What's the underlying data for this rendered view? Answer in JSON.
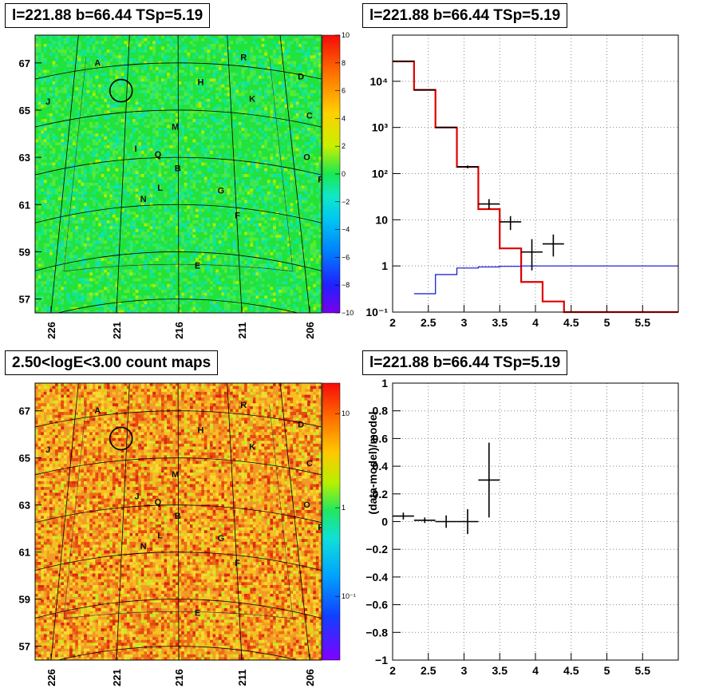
{
  "panels": {
    "top_left_title": "l=221.88 b=66.44 TSp=5.19",
    "top_right_title": "l=221.88 b=66.44 TSp=5.19",
    "bottom_left_title": "2.50<logE<3.00 count maps",
    "bottom_right_title": "l=221.88 b=66.44 TSp=5.19"
  },
  "colors": {
    "model_red": "#e00000",
    "component_blue": "#1010d0",
    "data_black": "#000000",
    "grid_gray": "#888888"
  },
  "chart_data": [
    {
      "type": "heatmap",
      "title": "l=221.88 b=66.44 TSp=5.19",
      "xticks": [
        "226",
        "221",
        "216",
        "211",
        "206"
      ],
      "yticks": [
        "57",
        "59",
        "61",
        "63",
        "65",
        "67"
      ],
      "colorbar_ticks": [
        "10",
        "8",
        "6",
        "4",
        "2",
        "0",
        "−2",
        "−4",
        "−6",
        "−8",
        "−10"
      ],
      "colorbar_range": [
        -10,
        10
      ],
      "source_labels": [
        "A",
        "R",
        "D",
        "H",
        "K",
        "J",
        "C",
        "M",
        "I",
        "Q",
        "O",
        "B",
        "P",
        "L",
        "G",
        "N",
        "F",
        "E"
      ]
    },
    {
      "type": "line",
      "title": "l=221.88 b=66.44 TSp=5.19",
      "xlim": [
        2,
        6
      ],
      "ylim": [
        0.1,
        100000
      ],
      "yscale": "log",
      "xticks": [
        "2",
        "2.5",
        "3",
        "3.5",
        "4",
        "4.5",
        "5",
        "5.5"
      ],
      "yticks": [
        "10⁻¹",
        "1",
        "10",
        "10²",
        "10³",
        "10⁴"
      ],
      "grid": true,
      "series": [
        {
          "style": "step",
          "color": "#e00000",
          "bin_edges": [
            2.0,
            2.3,
            2.6,
            2.9,
            3.2,
            3.5,
            3.8,
            4.1,
            4.4,
            6.0
          ],
          "values": [
            27000,
            6500,
            1000,
            140,
            17,
            2.4,
            0.45,
            0.17,
            0.1
          ]
        },
        {
          "style": "step",
          "color": "#1010d0",
          "bin_edges": [
            2.3,
            2.6,
            2.9,
            3.2,
            3.5,
            3.8,
            6.0
          ],
          "values": [
            0.25,
            0.65,
            0.9,
            0.95,
            0.98,
            1.0
          ]
        },
        {
          "style": "errorbars",
          "color": "#000000",
          "x": [
            2.15,
            2.45,
            2.75,
            3.05,
            3.35,
            3.65,
            3.95,
            4.25
          ],
          "y": [
            27000,
            6500,
            1000,
            140,
            22,
            9,
            2,
            3
          ],
          "xerr": [
            0.15,
            0.15,
            0.15,
            0.15,
            0.15,
            0.15,
            0.15,
            0.15
          ],
          "ylo": [
            26800,
            6400,
            970,
            130,
            17,
            6,
            0.8,
            1.6
          ],
          "yhi": [
            27200,
            6600,
            1030,
            150,
            28,
            12,
            3.8,
            4.8
          ]
        }
      ]
    },
    {
      "type": "heatmap",
      "title": "2.50<logE<3.00 count maps",
      "xticks": [
        "226",
        "221",
        "216",
        "211",
        "206"
      ],
      "yticks": [
        "57",
        "59",
        "61",
        "63",
        "65",
        "67"
      ],
      "colorbar_ticks": [
        "10",
        "1",
        "10⁻¹"
      ],
      "colorbar_scale": "log",
      "source_labels": [
        "A",
        "R",
        "D",
        "H",
        "K",
        "J",
        "C",
        "M",
        "J",
        "Q",
        "O",
        "B",
        "P",
        "L",
        "G",
        "N",
        "F",
        "E"
      ]
    },
    {
      "type": "scatter",
      "title": "l=221.88 b=66.44 TSp=5.19",
      "ylabel": "(data-model)/model",
      "xlim": [
        2,
        6
      ],
      "ylim": [
        -1,
        1
      ],
      "xticks": [
        "2",
        "2.5",
        "3",
        "3.5",
        "4",
        "4.5",
        "5",
        "5.5"
      ],
      "yticks": [
        "1",
        "0.8",
        "0.6",
        "0.4",
        "0.2",
        "0",
        "−0.2",
        "−0.4",
        "−0.6",
        "−0.8",
        "−1"
      ],
      "grid": true,
      "x": [
        2.15,
        2.45,
        2.75,
        3.05,
        3.35
      ],
      "y": [
        0.04,
        0.01,
        0.0,
        0.0,
        0.3
      ],
      "xerr": [
        0.15,
        0.15,
        0.15,
        0.15,
        0.15
      ],
      "yerr": [
        0.025,
        0.02,
        0.045,
        0.09,
        0.27
      ]
    }
  ]
}
